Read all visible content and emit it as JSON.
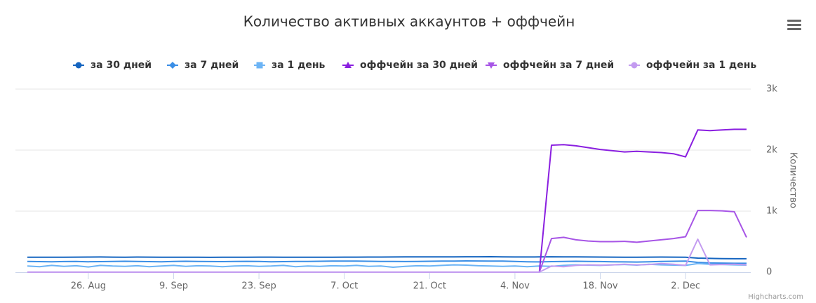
{
  "chart_data": {
    "type": "line",
    "title": "Количество активных аккаунтов + оффчейн",
    "y_axis_title": "Количество",
    "credits": "Highcharts.com",
    "categories": [
      null,
      null,
      null,
      null,
      null,
      "26. Aug",
      null,
      null,
      null,
      null,
      null,
      null,
      "9. Sep",
      null,
      null,
      null,
      null,
      null,
      null,
      "23. Sep",
      null,
      null,
      null,
      null,
      null,
      null,
      "7. Oct",
      null,
      null,
      null,
      null,
      null,
      null,
      "21. Oct",
      null,
      null,
      null,
      null,
      null,
      null,
      "4. Nov",
      null,
      null,
      null,
      null,
      null,
      null,
      "18. Nov",
      null,
      null,
      null,
      null,
      null,
      null,
      "2. Dec",
      null,
      null,
      null,
      null,
      null
    ],
    "ylim": [
      0,
      3000
    ],
    "yticks": [
      {
        "value": 0,
        "label": "0"
      },
      {
        "value": 1000,
        "label": "1k"
      },
      {
        "value": 2000,
        "label": "2k"
      },
      {
        "value": 3000,
        "label": "3k"
      }
    ],
    "grid": true,
    "series": [
      {
        "name": "за 30 дней",
        "color": "#1565c0",
        "symbol": "circle",
        "values": [
          245,
          245,
          244,
          245,
          246,
          247,
          248,
          246,
          245,
          247,
          246,
          245,
          245,
          244,
          244,
          243,
          244,
          245,
          245,
          246,
          246,
          245,
          244,
          244,
          245,
          245,
          246,
          246,
          247,
          247,
          248,
          249,
          250,
          250,
          250,
          251,
          252,
          252,
          253,
          250,
          248,
          248,
          250,
          252,
          250,
          249,
          248,
          247,
          246,
          245,
          245,
          246,
          247,
          246,
          245,
          230,
          225,
          222,
          220,
          220
        ]
      },
      {
        "name": "за 7 дней",
        "color": "#3a8ee6",
        "symbol": "diamond",
        "values": [
          175,
          172,
          170,
          174,
          176,
          170,
          172,
          175,
          178,
          176,
          172,
          170,
          175,
          178,
          176,
          174,
          172,
          175,
          177,
          175,
          170,
          172,
          175,
          176,
          178,
          180,
          182,
          180,
          178,
          176,
          175,
          174,
          176,
          178,
          180,
          182,
          184,
          183,
          182,
          180,
          175,
          170,
          168,
          172,
          175,
          178,
          176,
          174,
          170,
          168,
          165,
          170,
          175,
          178,
          180,
          160,
          150,
          148,
          145,
          145
        ]
      },
      {
        "name": "за 1 день",
        "color": "#6cb4f5",
        "symbol": "square",
        "values": [
          100,
          90,
          110,
          95,
          105,
          85,
          110,
          100,
          95,
          105,
          90,
          100,
          110,
          95,
          105,
          100,
          90,
          100,
          105,
          95,
          100,
          110,
          90,
          100,
          95,
          105,
          100,
          110,
          95,
          100,
          80,
          95,
          105,
          100,
          110,
          120,
          115,
          105,
          100,
          95,
          100,
          90,
          100,
          95,
          110,
          120,
          115,
          110,
          120,
          125,
          115,
          130,
          120,
          115,
          110,
          140,
          130,
          125,
          120,
          115
        ]
      },
      {
        "name": "оффчейн за 30 дней",
        "color": "#8a1fe0",
        "symbol": "triangle",
        "values": [
          0,
          0,
          0,
          0,
          0,
          0,
          0,
          0,
          0,
          0,
          0,
          0,
          0,
          0,
          0,
          0,
          0,
          0,
          0,
          0,
          0,
          0,
          0,
          0,
          0,
          0,
          0,
          0,
          0,
          0,
          0,
          0,
          0,
          0,
          0,
          0,
          0,
          0,
          0,
          0,
          0,
          0,
          0,
          2080,
          2090,
          2070,
          2040,
          2010,
          1990,
          1970,
          1980,
          1970,
          1960,
          1940,
          1890,
          2330,
          2320,
          2330,
          2340,
          2340
        ]
      },
      {
        "name": "оффчейн за 7 дней",
        "color": "#a755e6",
        "symbol": "triangle-down",
        "values": [
          0,
          0,
          0,
          0,
          0,
          0,
          0,
          0,
          0,
          0,
          0,
          0,
          0,
          0,
          0,
          0,
          0,
          0,
          0,
          0,
          0,
          0,
          0,
          0,
          0,
          0,
          0,
          0,
          0,
          0,
          0,
          0,
          0,
          0,
          0,
          0,
          0,
          0,
          0,
          0,
          0,
          0,
          0,
          550,
          570,
          530,
          510,
          500,
          500,
          505,
          490,
          510,
          530,
          550,
          580,
          1010,
          1010,
          1005,
          990,
          570
        ]
      },
      {
        "name": "оффчейн за 1 день",
        "color": "#c39bf0",
        "symbol": "circle",
        "values": [
          0,
          0,
          0,
          0,
          0,
          0,
          0,
          0,
          0,
          0,
          0,
          0,
          0,
          0,
          0,
          0,
          0,
          0,
          0,
          0,
          0,
          0,
          0,
          0,
          0,
          0,
          0,
          0,
          0,
          0,
          0,
          0,
          0,
          0,
          0,
          0,
          0,
          0,
          0,
          0,
          0,
          0,
          0,
          100,
          90,
          110,
          120,
          115,
          120,
          130,
          120,
          125,
          140,
          130,
          110,
          540,
          120,
          125,
          130,
          120
        ]
      }
    ]
  }
}
